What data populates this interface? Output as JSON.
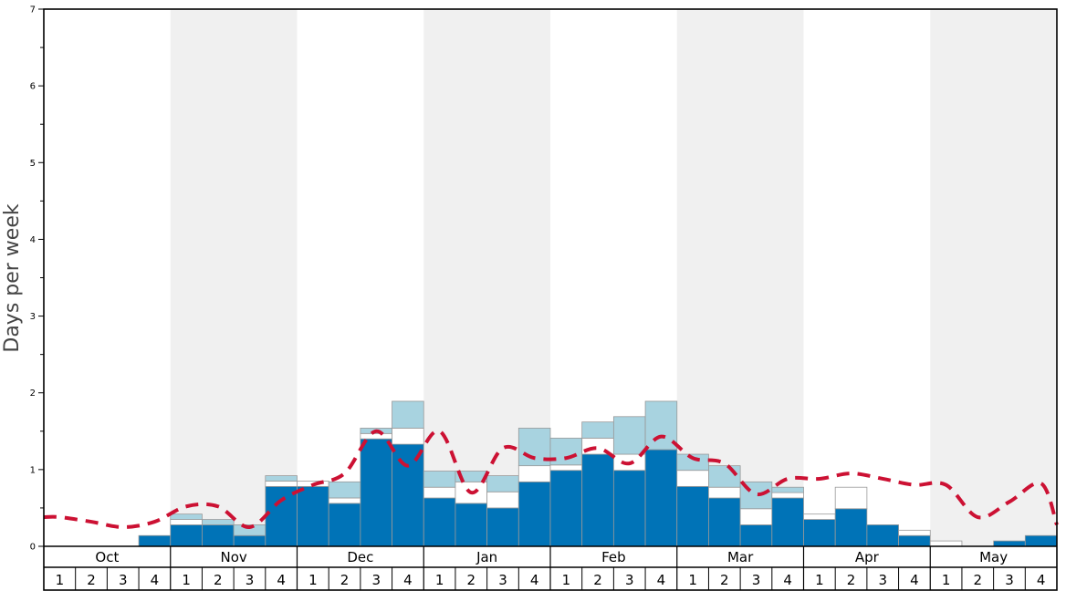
{
  "chart_data": {
    "type": "bar",
    "ylabel": "Days per week",
    "ylim": [
      0,
      7
    ],
    "yticks": [
      0,
      1,
      2,
      3,
      4,
      5,
      6,
      7
    ],
    "months": [
      "Oct",
      "Nov",
      "Dec",
      "Jan",
      "Feb",
      "Mar",
      "Apr",
      "May"
    ],
    "weeks_per_month": [
      "1",
      "2",
      "3",
      "4"
    ],
    "shaded_months": [
      "Nov",
      "Jan",
      "Mar",
      "May"
    ],
    "colors": {
      "dark": "#0073b7",
      "white": "#ffffff",
      "light": "#a8d3e0",
      "line": "#cc1133",
      "shade": "#f0f0f0"
    },
    "series": [
      {
        "name": "",
        "color": "#0073b7",
        "values": [
          0,
          0,
          0,
          0.14,
          0.28,
          0.28,
          0.14,
          0.78,
          0.78,
          0.56,
          1.4,
          1.33,
          0.63,
          0.56,
          0.5,
          0.84,
          0.99,
          1.2,
          0.99,
          1.26,
          0.78,
          0.63,
          0.28,
          0.63,
          0.35,
          0.49,
          0.28,
          0.14,
          0,
          0,
          0.07,
          0.14
        ]
      },
      {
        "name": "",
        "color": "#ffffff",
        "values": [
          0,
          0,
          0,
          0,
          0.07,
          0,
          0,
          0.07,
          0.07,
          0.07,
          0.07,
          0.21,
          0.14,
          0.28,
          0.21,
          0.21,
          0.07,
          0.21,
          0.21,
          0,
          0.21,
          0.14,
          0.21,
          0.07,
          0.07,
          0.28,
          0,
          0.07,
          0.07,
          0,
          0,
          0
        ]
      },
      {
        "name": "",
        "color": "#a8d3e0",
        "values": [
          0,
          0,
          0,
          0,
          0.07,
          0.07,
          0.14,
          0.07,
          0,
          0.21,
          0.07,
          0.35,
          0.21,
          0.14,
          0.21,
          0.49,
          0.35,
          0.21,
          0.49,
          0.63,
          0.21,
          0.28,
          0.35,
          0.07,
          0,
          0,
          0,
          0,
          0,
          0,
          0,
          0
        ]
      },
      {
        "name": "",
        "color": "#cc1133",
        "line": true,
        "values": [
          0.38,
          0.32,
          0.25,
          0.32,
          0.52,
          0.52,
          0.25,
          0.6,
          0.8,
          0.95,
          1.5,
          1.05,
          1.5,
          0.7,
          1.28,
          1.15,
          1.15,
          1.28,
          1.08,
          1.43,
          1.15,
          1.08,
          0.68,
          0.88,
          0.88,
          0.95,
          0.88,
          0.8,
          0.8,
          0.38,
          0.58,
          0.82
        ]
      }
    ]
  }
}
